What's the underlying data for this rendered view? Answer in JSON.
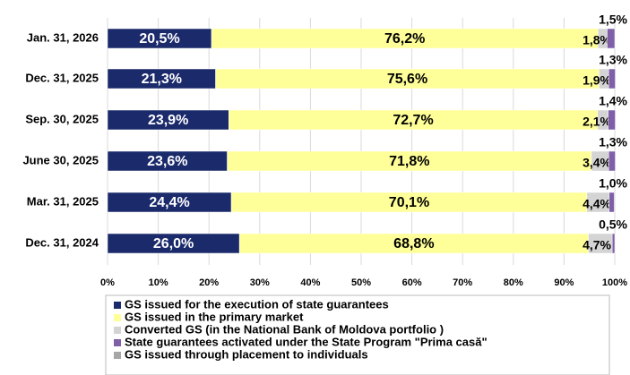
{
  "chart_data": {
    "type": "stacked-bar-horizontal",
    "categories": [
      "Jan. 31, 2026",
      "Dec. 31, 2025",
      "Sep. 30, 2025",
      "June 30, 2025",
      "Mar. 31, 2025",
      "Dec. 31, 2024"
    ],
    "series": [
      {
        "name": "GS issued for the execution of state guarantees",
        "color": "#1b2a6b",
        "values": [
          20.5,
          21.3,
          23.9,
          23.6,
          24.4,
          26.0
        ],
        "value_labels": [
          "20,5%",
          "21,3%",
          "23,9%",
          "23,6%",
          "24,4%",
          "26,0%"
        ]
      },
      {
        "name": "GS  issued in the primary market",
        "color": "#ffff99",
        "values": [
          76.2,
          75.6,
          72.7,
          71.8,
          70.1,
          68.8
        ],
        "value_labels": [
          "76,2%",
          "75,6%",
          "72,7%",
          "71,8%",
          "70,1%",
          "68,8%"
        ]
      },
      {
        "name": "Converted GS (in the National Bank of Moldova portfolio )",
        "color": "#d4d4d4",
        "values": [
          1.8,
          1.9,
          2.1,
          3.4,
          4.4,
          4.7
        ],
        "value_labels": [
          "1,8%",
          "1,9%",
          "2,1%",
          "3,4%",
          "4,4%",
          "4,7%"
        ]
      },
      {
        "name": "State guarantees activated under the State Program \"Prima casă\"",
        "color": "#7f60a8",
        "values": [
          1.5,
          1.3,
          1.4,
          1.3,
          1.0,
          0.5
        ],
        "value_labels": [
          "1,5%",
          "1,3%",
          "1,4%",
          "1,3%",
          "1,0%",
          "0,5%"
        ]
      },
      {
        "name": "GS issued through placement to individuals",
        "color": "#a6a6a6",
        "values": [
          null,
          null,
          null,
          null,
          null,
          null
        ]
      }
    ],
    "xlim": [
      0,
      100
    ],
    "xticks": [
      {
        "value": 0,
        "label": "0%"
      },
      {
        "value": 10,
        "label": "10%"
      },
      {
        "value": 20,
        "label": "20%"
      },
      {
        "value": 30,
        "label": "30%"
      },
      {
        "value": 40,
        "label": "40%"
      },
      {
        "value": 50,
        "label": "50%"
      },
      {
        "value": 60,
        "label": "60%"
      },
      {
        "value": 70,
        "label": "70%"
      },
      {
        "value": 80,
        "label": "80%"
      },
      {
        "value": 90,
        "label": "90%"
      },
      {
        "value": 100,
        "label": "100%"
      }
    ],
    "grid": true
  }
}
